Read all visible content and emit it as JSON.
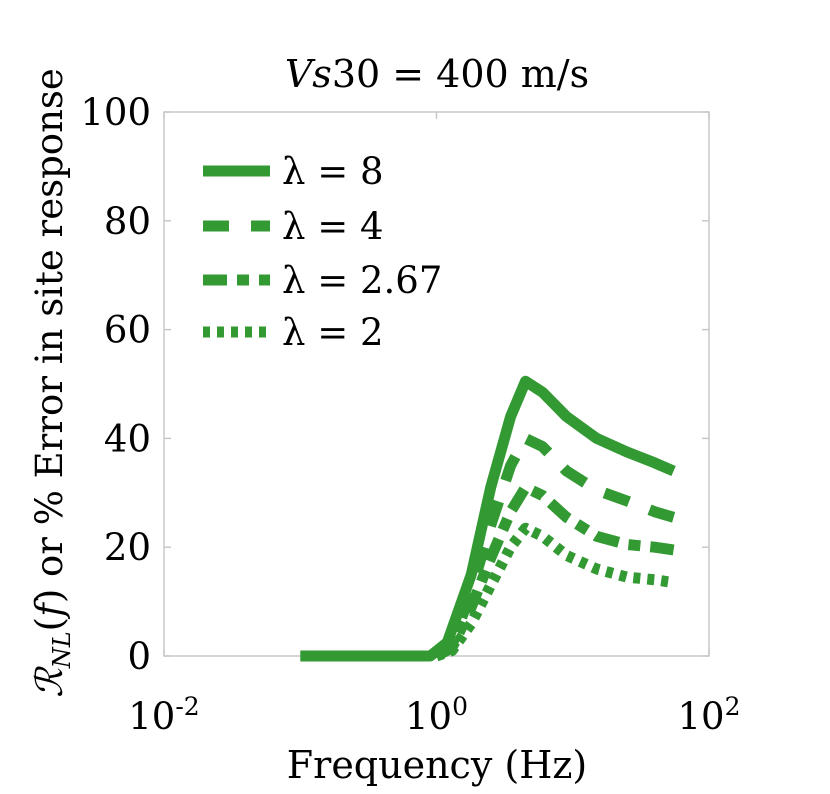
{
  "chart_data": {
    "type": "line",
    "title": "Vs30 = 400 m/s",
    "xlabel": "Frequency (Hz)",
    "ylabel": "R_NL(f) or % Error in site response",
    "xscale": "log",
    "xlim": [
      0.01,
      100
    ],
    "ylim": [
      0,
      100
    ],
    "xticks": [
      {
        "value": 0.01,
        "base": "10",
        "exp": "-2"
      },
      {
        "value": 1,
        "base": "10",
        "exp": "0"
      },
      {
        "value": 100,
        "base": "10",
        "exp": "2"
      }
    ],
    "yticks": [
      "0",
      "20",
      "40",
      "60",
      "80",
      "100"
    ],
    "grid": false,
    "legend_position": "top-left",
    "color": "#339933",
    "series": [
      {
        "name": "λ = 8",
        "dash": "solid",
        "x": [
          0.1,
          0.2,
          0.5,
          0.9,
          1.2,
          1.8,
          2.5,
          3.5,
          4.5,
          6.0,
          9.0,
          15,
          25,
          40,
          55
        ],
        "y": [
          0,
          0,
          0,
          0,
          2.5,
          15,
          31,
          44,
          50.5,
          48.5,
          44,
          40,
          37.5,
          35.5,
          34
        ]
      },
      {
        "name": "λ = 4",
        "dash": "dash",
        "x": [
          1.0,
          1.3,
          1.8,
          2.5,
          3.5,
          4.5,
          6.0,
          9.0,
          15,
          25,
          40,
          55
        ],
        "y": [
          0,
          2,
          12,
          24,
          35,
          40,
          38.5,
          34,
          30.5,
          28.5,
          26.5,
          25.5
        ]
      },
      {
        "name": "λ = 2.67",
        "dash": "dashdot",
        "x": [
          1.0,
          1.3,
          1.8,
          2.5,
          3.5,
          4.5,
          6.0,
          9.0,
          15,
          25,
          40,
          55
        ],
        "y": [
          0,
          1.5,
          9,
          18,
          26.5,
          31,
          29.5,
          25.5,
          22,
          20.5,
          20,
          19.5
        ]
      },
      {
        "name": "λ = 2",
        "dash": "dot",
        "x": [
          1.0,
          1.3,
          1.8,
          2.5,
          3.5,
          4.5,
          6.0,
          9.0,
          15,
          25,
          40,
          55
        ],
        "y": [
          0,
          1,
          6,
          13,
          20,
          23.5,
          22,
          18.5,
          16,
          14.5,
          14,
          13.5
        ]
      }
    ]
  }
}
